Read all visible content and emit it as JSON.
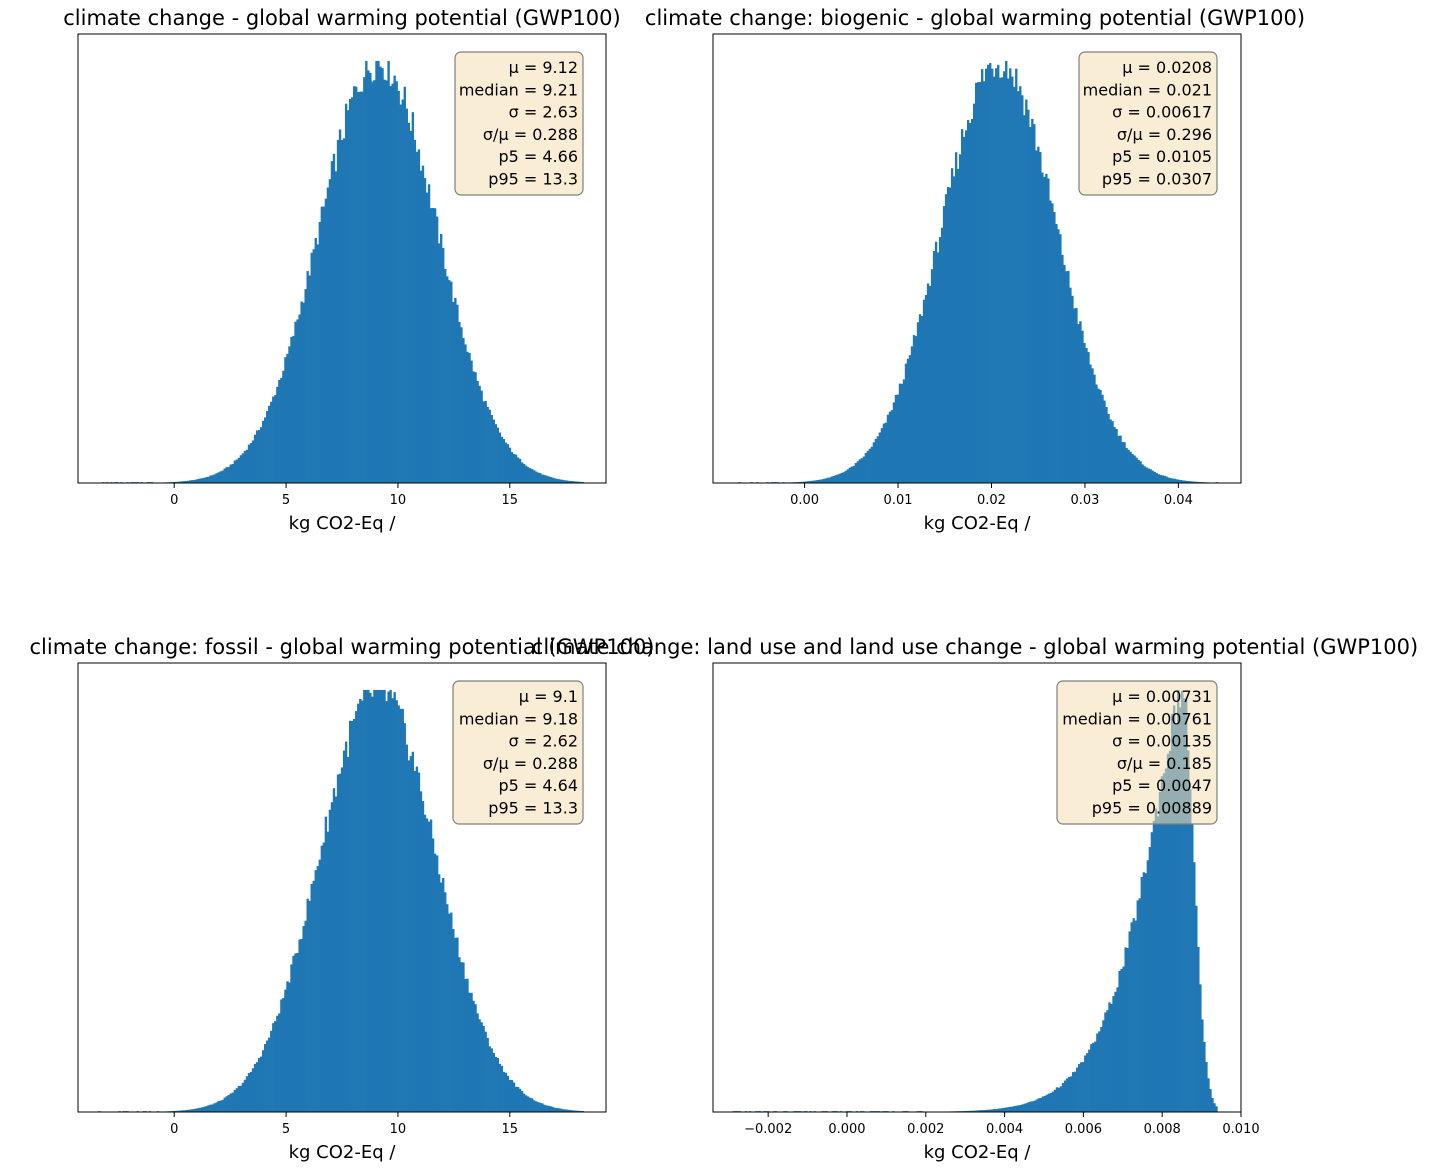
{
  "figure": {
    "bar_color": "#1f77b4",
    "stats_box_fill": "#f5deb3",
    "stats_box_edge": "#7f7f7f"
  },
  "chart_data": [
    {
      "type": "histogram",
      "title": "climate change - global warming potential (GWP100)",
      "xlabel": "kg CO2-Eq /",
      "ylabel": "",
      "xlim": [
        -4.3,
        19.3
      ],
      "xticks": [
        0,
        5,
        10,
        15
      ],
      "xtick_labels": [
        "0",
        "5",
        "10",
        "15"
      ],
      "y_axis_shown": false,
      "distribution": {
        "shape": "normal",
        "mean": 9.12,
        "sd": 2.63,
        "x_min": -3.4,
        "x_max": 18.3
      },
      "stats": [
        "μ = 9.12",
        "median = 9.21",
        "σ = 2.63",
        "σ/μ = 0.288",
        "p5 = 4.66",
        "p95 = 13.3"
      ]
    },
    {
      "type": "histogram",
      "title": "climate change: biogenic - global warming potential (GWP100)",
      "xlabel": "kg CO2-Eq /",
      "ylabel": "",
      "xlim": [
        -0.0098,
        0.0467
      ],
      "xticks": [
        0.0,
        0.01,
        0.02,
        0.03,
        0.04
      ],
      "xtick_labels": [
        "0.00",
        "0.01",
        "0.02",
        "0.03",
        "0.04"
      ],
      "y_axis_shown": false,
      "distribution": {
        "shape": "normal",
        "mean": 0.0208,
        "sd": 0.00617,
        "x_min": -0.0073,
        "x_max": 0.0442
      },
      "stats": [
        "μ = 0.0208",
        "median = 0.021",
        "σ = 0.00617",
        "σ/μ = 0.296",
        "p5 = 0.0105",
        "p95 = 0.0307"
      ]
    },
    {
      "type": "histogram",
      "title": "climate change: fossil - global warming potential (GWP100)",
      "xlabel": "kg CO2-Eq /",
      "ylabel": "",
      "xlim": [
        -4.3,
        19.3
      ],
      "xticks": [
        0,
        5,
        10,
        15
      ],
      "xtick_labels": [
        "0",
        "5",
        "10",
        "15"
      ],
      "y_axis_shown": false,
      "distribution": {
        "shape": "normal",
        "mean": 9.1,
        "sd": 2.62,
        "x_min": -3.4,
        "x_max": 18.3
      },
      "stats": [
        "μ = 9.1",
        "median = 9.18",
        "σ = 2.62",
        "σ/μ = 0.288",
        "p5 = 4.64",
        "p95 = 13.3"
      ]
    },
    {
      "type": "histogram",
      "title": "climate change: land use and land use change - global warming potential (GWP100)",
      "xlabel": "kg CO2-Eq /",
      "ylabel": "",
      "xlim": [
        -0.0034,
        0.01
      ],
      "xticks": [
        -0.002,
        0.0,
        0.002,
        0.004,
        0.006,
        0.008,
        0.01
      ],
      "xtick_labels": [
        "−0.002",
        "0.000",
        "0.002",
        "0.004",
        "0.006",
        "0.008",
        "0.010"
      ],
      "y_axis_shown": false,
      "distribution": {
        "shape": "left-skewed",
        "mode": 0.0085,
        "x_min": -0.0029,
        "x_max": 0.0094
      },
      "stats": [
        "μ = 0.00731",
        "median = 0.00761",
        "σ = 0.00135",
        "σ/μ = 0.185",
        "p5 = 0.0047",
        "p95 = 0.00889"
      ]
    }
  ]
}
